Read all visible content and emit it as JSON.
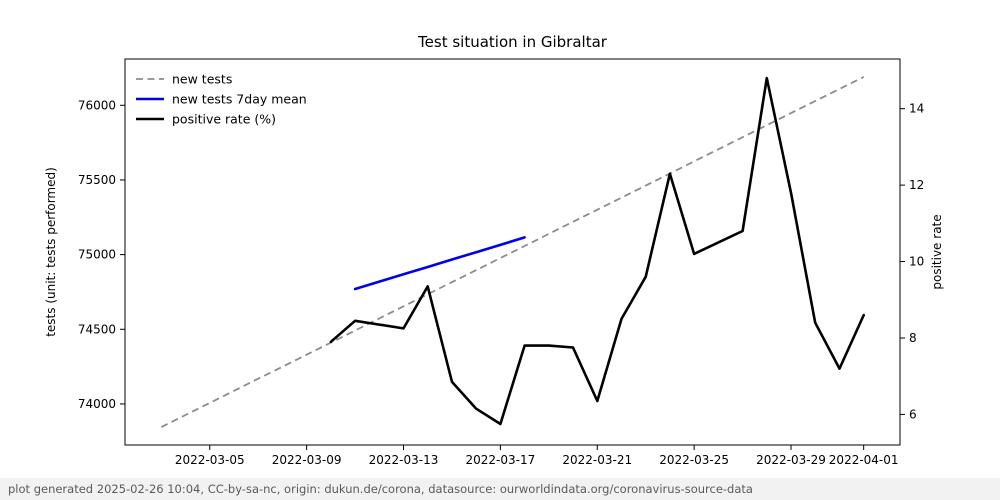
{
  "title": "Test situation in Gibraltar",
  "footer": {
    "text": "plot generated 2025-02-26 10:04, CC-by-sa-nc, origin: dukun.de/corona, datasource: ourworldindata.org/coronavirus-source-data",
    "bg_color": "#f2f2f2",
    "text_color": "#5a5a5a"
  },
  "chart_data": {
    "type": "line",
    "title": "Test situation in Gibraltar",
    "grid": false,
    "legend_position": "upper left",
    "x_axis": {
      "range": [
        "2022-03-01T12:00:00Z",
        "2022-04-02T12:00:00Z"
      ],
      "ticks": [
        "2022-03-05",
        "2022-03-09",
        "2022-03-13",
        "2022-03-17",
        "2022-03-21",
        "2022-03-25",
        "2022-03-29",
        "2022-04-01"
      ]
    },
    "left_axis": {
      "label": "tests (unit: tests performed)",
      "range": [
        73725,
        76310
      ],
      "ticks": [
        74000,
        74500,
        75000,
        75500,
        76000
      ]
    },
    "right_axis": {
      "label": "positive rate",
      "range": [
        5.2,
        15.3
      ],
      "ticks": [
        6,
        8,
        10,
        12,
        14
      ]
    },
    "series": [
      {
        "name": "new tests",
        "axis": "left",
        "color": "#8c8c8c",
        "dash": "dashed",
        "width": 1.8,
        "x": [
          "2022-03-03",
          "2022-03-04",
          "2022-03-05",
          "2022-03-06",
          "2022-03-07",
          "2022-03-08",
          "2022-03-09",
          "2022-03-10",
          "2022-03-11",
          "2022-03-12",
          "2022-03-13",
          "2022-03-14",
          "2022-03-15",
          "2022-03-16",
          "2022-03-17",
          "2022-03-18",
          "2022-03-19",
          "2022-03-20",
          "2022-03-21",
          "2022-03-22",
          "2022-03-23",
          "2022-03-24",
          "2022-03-25",
          "2022-03-26",
          "2022-03-27",
          "2022-03-28",
          "2022-03-29",
          "2022-03-30",
          "2022-03-31",
          "2022-04-01"
        ],
        "y": [
          73845,
          73926,
          74007,
          74088,
          74169,
          74249,
          74330,
          74411,
          74492,
          74573,
          74654,
          74735,
          74816,
          74896,
          74977,
          75058,
          75139,
          75220,
          75301,
          75382,
          75462,
          75543,
          75624,
          75705,
          75786,
          75867,
          75948,
          76028,
          76109,
          76190
        ]
      },
      {
        "name": "new tests 7day mean",
        "axis": "left",
        "color": "#0000ee",
        "dash": "solid",
        "width": 2.6,
        "x": [
          "2022-03-11",
          "2022-03-12",
          "2022-03-13",
          "2022-03-14",
          "2022-03-15",
          "2022-03-16",
          "2022-03-17",
          "2022-03-18"
        ],
        "y": [
          74770,
          74819,
          74868,
          74917,
          74967,
          75016,
          75065,
          75115
        ]
      },
      {
        "name": "positive rate (%)",
        "axis": "right",
        "color": "#000000",
        "dash": "solid",
        "width": 2.6,
        "x": [
          "2022-03-10",
          "2022-03-11",
          "2022-03-12",
          "2022-03-13",
          "2022-03-14",
          "2022-03-15",
          "2022-03-16",
          "2022-03-17",
          "2022-03-18",
          "2022-03-19",
          "2022-03-20",
          "2022-03-21",
          "2022-03-22",
          "2022-03-23",
          "2022-03-24",
          "2022-03-25",
          "2022-03-26",
          "2022-03-27",
          "2022-03-28",
          "2022-03-29",
          "2022-03-30",
          "2022-03-31",
          "2022-04-01"
        ],
        "y": [
          7.9,
          8.45,
          8.35,
          8.25,
          9.35,
          6.85,
          6.15,
          5.75,
          7.8,
          7.8,
          7.75,
          6.35,
          8.5,
          9.6,
          12.3,
          10.2,
          10.5,
          10.8,
          14.8,
          11.8,
          8.4,
          7.2,
          8.6
        ]
      }
    ]
  }
}
